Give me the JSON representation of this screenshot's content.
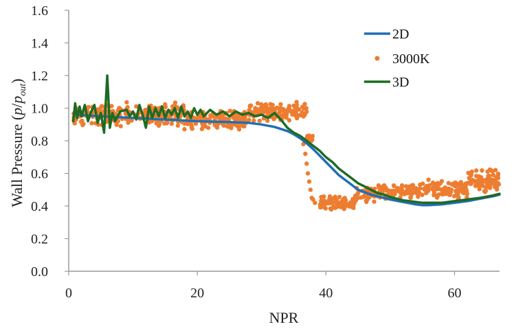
{
  "chart_data": {
    "type": "line",
    "title": "",
    "xlabel": "NPR",
    "ylabel_prefix": "Wall Pressure (",
    "ylabel_p": "p",
    "ylabel_slash": "/",
    "ylabel_pout_p": "p",
    "ylabel_pout_sub": "out",
    "ylabel_suffix": ")",
    "xlim": [
      0,
      67
    ],
    "ylim": [
      0,
      1.6
    ],
    "x_ticks": [
      "0",
      "20",
      "40",
      "60"
    ],
    "y_ticks": [
      "0.0",
      "0.2",
      "0.4",
      "0.6",
      "0.8",
      "1.0",
      "1.2",
      "1.4",
      "1.6"
    ],
    "grid": false,
    "legend_position": "top-right",
    "colors": {
      "2D": "#1f6fb5",
      "3000K": "#ed7d31",
      "3D": "#1e6b23"
    },
    "series": [
      {
        "name": "2D",
        "kind": "line",
        "points": [
          [
            1,
            0.96
          ],
          [
            5,
            0.95
          ],
          [
            10,
            0.94
          ],
          [
            15,
            0.93
          ],
          [
            20,
            0.92
          ],
          [
            25,
            0.915
          ],
          [
            28,
            0.91
          ],
          [
            30,
            0.9
          ],
          [
            32,
            0.885
          ],
          [
            34,
            0.86
          ],
          [
            35,
            0.84
          ],
          [
            36,
            0.815
          ],
          [
            37,
            0.785
          ],
          [
            38,
            0.75
          ],
          [
            39,
            0.71
          ],
          [
            40,
            0.67
          ],
          [
            41,
            0.63
          ],
          [
            42,
            0.59
          ],
          [
            43,
            0.56
          ],
          [
            44,
            0.53
          ],
          [
            45,
            0.5
          ],
          [
            46,
            0.485
          ],
          [
            47,
            0.47
          ],
          [
            48,
            0.46
          ],
          [
            50,
            0.44
          ],
          [
            52,
            0.425
          ],
          [
            54,
            0.41
          ],
          [
            55,
            0.405
          ],
          [
            56,
            0.405
          ],
          [
            58,
            0.41
          ],
          [
            60,
            0.42
          ],
          [
            62,
            0.43
          ],
          [
            64,
            0.445
          ],
          [
            66,
            0.46
          ],
          [
            67,
            0.47
          ]
        ]
      },
      {
        "name": "3000K",
        "kind": "scatter",
        "segments": [
          {
            "x0": 0.7,
            "x1": 18,
            "center": 0.96,
            "noise": 0.05
          },
          {
            "x0": 18,
            "x1": 28,
            "center": 0.93,
            "noise": 0.04
          },
          {
            "x0": 28,
            "x1": 37,
            "center": 0.98,
            "noise": 0.04
          },
          {
            "x0": 37,
            "x1": 38,
            "center": 0.82,
            "noise": 0.02
          },
          {
            "x0": 39,
            "x1": 44.5,
            "center": 0.42,
            "noise": 0.03
          },
          {
            "x0": 44.5,
            "x1": 48,
            "center": 0.47,
            "noise": 0.03
          },
          {
            "x0": 48,
            "x1": 55,
            "center": 0.49,
            "noise": 0.03
          },
          {
            "x0": 55,
            "x1": 62,
            "center": 0.5,
            "noise": 0.04
          },
          {
            "x0": 62,
            "x1": 67,
            "center": 0.55,
            "noise": 0.05
          }
        ],
        "drop_points": [
          [
            36.5,
            0.78
          ],
          [
            36.8,
            0.72
          ],
          [
            37.0,
            0.66
          ],
          [
            37.2,
            0.6
          ],
          [
            37.4,
            0.55
          ],
          [
            37.6,
            0.5
          ],
          [
            37.8,
            0.45
          ],
          [
            38.0,
            0.44
          ],
          [
            38.3,
            0.42
          ]
        ]
      },
      {
        "name": "3D",
        "kind": "line",
        "points": [
          [
            0.7,
            0.92
          ],
          [
            1.0,
            1.03
          ],
          [
            1.3,
            0.94
          ],
          [
            1.7,
            1.01
          ],
          [
            2.0,
            0.95
          ],
          [
            2.5,
            1.02
          ],
          [
            3.0,
            0.92
          ],
          [
            3.5,
            0.98
          ],
          [
            4.0,
            1.02
          ],
          [
            4.5,
            0.91
          ],
          [
            5.0,
            0.97
          ],
          [
            5.5,
            0.85
          ],
          [
            6.0,
            1.2
          ],
          [
            6.4,
            0.88
          ],
          [
            6.8,
            0.97
          ],
          [
            7.2,
            0.92
          ],
          [
            8.0,
            0.98
          ],
          [
            9.0,
            0.99
          ],
          [
            9.5,
            0.95
          ],
          [
            10.0,
            0.98
          ],
          [
            10.5,
            0.93
          ],
          [
            11.0,
            1.02
          ],
          [
            11.5,
            0.96
          ],
          [
            12.0,
            0.88
          ],
          [
            12.5,
            1.01
          ],
          [
            13.0,
            0.94
          ],
          [
            13.5,
            1.0
          ],
          [
            14.0,
            0.95
          ],
          [
            14.5,
            1.01
          ],
          [
            15.0,
            0.94
          ],
          [
            15.5,
            0.99
          ],
          [
            16.0,
            0.96
          ],
          [
            16.5,
            1.0
          ],
          [
            17.0,
            0.94
          ],
          [
            17.5,
            1.01
          ],
          [
            18.0,
            0.95
          ],
          [
            18.5,
            0.98
          ],
          [
            19.0,
            0.94
          ],
          [
            19.5,
            1.0
          ],
          [
            20.0,
            0.96
          ],
          [
            20.5,
            0.99
          ],
          [
            21.0,
            0.95
          ],
          [
            22.0,
            0.99
          ],
          [
            23.0,
            0.96
          ],
          [
            24.0,
            0.98
          ],
          [
            25.0,
            0.95
          ],
          [
            26.0,
            0.98
          ],
          [
            27.0,
            0.96
          ],
          [
            28.0,
            0.97
          ],
          [
            29.0,
            0.95
          ],
          [
            30.0,
            0.96
          ],
          [
            31.0,
            0.94
          ],
          [
            32.0,
            0.97
          ],
          [
            33.0,
            0.93
          ],
          [
            34.0,
            0.88
          ],
          [
            35.0,
            0.85
          ],
          [
            36.0,
            0.83
          ],
          [
            37.0,
            0.8
          ],
          [
            38.0,
            0.77
          ],
          [
            39.0,
            0.74
          ],
          [
            40.0,
            0.7
          ],
          [
            41.0,
            0.67
          ],
          [
            42.0,
            0.63
          ],
          [
            43.0,
            0.6
          ],
          [
            44.0,
            0.57
          ],
          [
            45.0,
            0.54
          ],
          [
            46.0,
            0.52
          ],
          [
            47.0,
            0.5
          ],
          [
            48.0,
            0.48
          ],
          [
            49.0,
            0.47
          ],
          [
            50.0,
            0.455
          ],
          [
            51.0,
            0.445
          ],
          [
            52.0,
            0.435
          ],
          [
            53.0,
            0.43
          ],
          [
            54.0,
            0.425
          ],
          [
            55.0,
            0.42
          ],
          [
            56.0,
            0.42
          ],
          [
            58.0,
            0.42
          ],
          [
            60.0,
            0.43
          ],
          [
            62.0,
            0.44
          ],
          [
            64.0,
            0.45
          ],
          [
            66.0,
            0.465
          ],
          [
            67.0,
            0.475
          ]
        ]
      }
    ]
  }
}
